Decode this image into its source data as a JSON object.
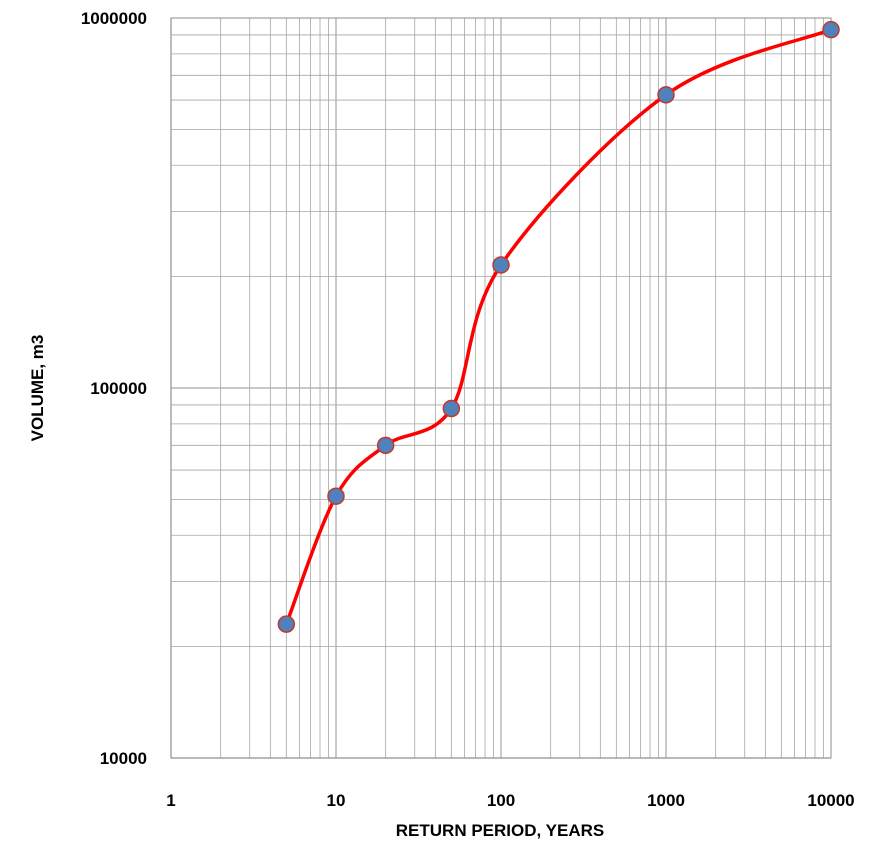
{
  "chart_data": {
    "type": "line",
    "title": "",
    "xlabel": "RETURN PERIOD, YEARS",
    "ylabel": "VOLUME, m3",
    "x_scale": "log",
    "y_scale": "log",
    "xlim": [
      1,
      10000
    ],
    "ylim": [
      10000,
      1000000
    ],
    "x_ticks": [
      "1",
      "10",
      "100",
      "1000",
      "10000"
    ],
    "y_ticks": [
      "10000",
      "100000",
      "1000000"
    ],
    "grid": true,
    "legend": "none",
    "smooth": true,
    "series": [
      {
        "x": [
          5,
          10,
          20,
          50,
          100,
          1000,
          10000
        ],
        "y": [
          23000,
          51000,
          70000,
          88000,
          215000,
          620000,
          930000
        ],
        "line_color": "#ff0000",
        "marker_color": "#4f81bd",
        "marker_edge_color": "#c0392b"
      }
    ],
    "grid_color": "#a6a6a6"
  }
}
